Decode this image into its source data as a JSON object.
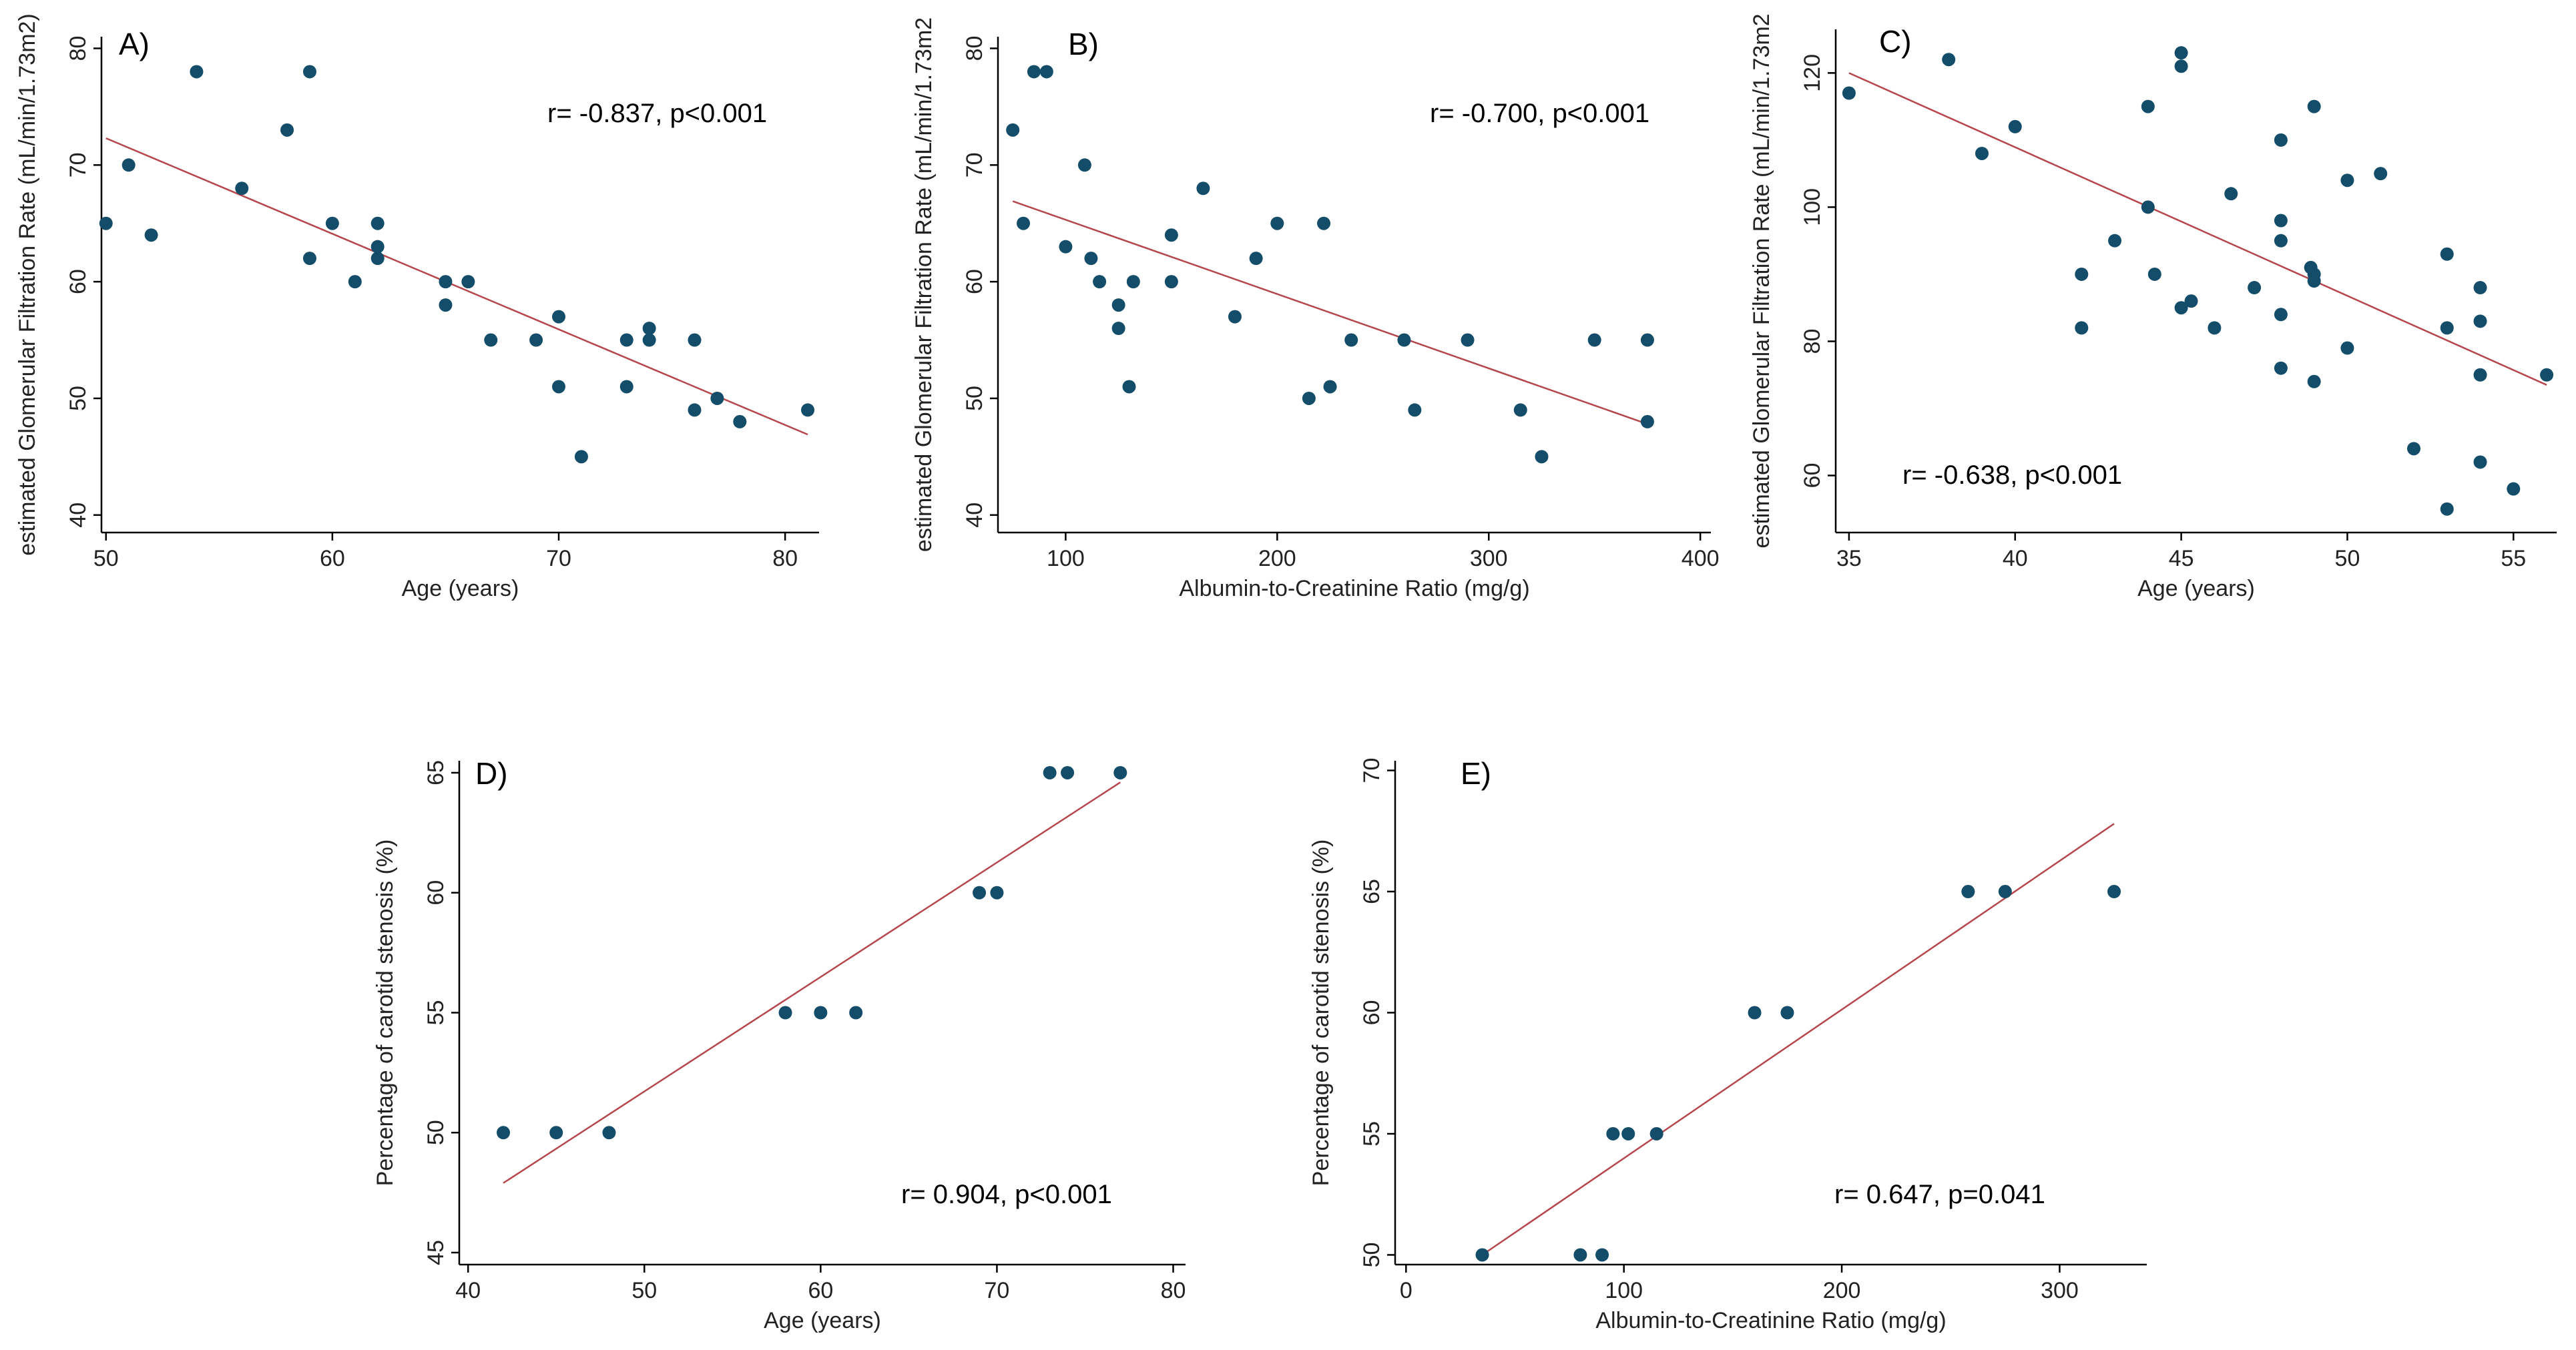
{
  "chart_data": [
    {
      "id": "A",
      "type": "scatter",
      "panel_label": "A)",
      "xlabel": "Age (years)",
      "ylabel": "estimated Glomerular Filtration Rate (mL/min/1.73m2)",
      "annotation": "r= -0.837, p<0.001",
      "xlim": [
        49.8,
        81.5
      ],
      "ylim": [
        38.5,
        81
      ],
      "xticks": [
        50,
        60,
        70,
        80
      ],
      "yticks": [
        40,
        50,
        60,
        70,
        80
      ],
      "fit": [
        [
          50,
          72.3
        ],
        [
          81,
          46.9
        ]
      ],
      "points": [
        [
          50,
          65
        ],
        [
          51,
          70
        ],
        [
          52,
          64
        ],
        [
          54,
          78
        ],
        [
          56,
          68
        ],
        [
          58,
          73
        ],
        [
          59,
          78
        ],
        [
          59,
          62
        ],
        [
          60,
          65
        ],
        [
          61,
          60
        ],
        [
          62,
          65
        ],
        [
          62,
          63
        ],
        [
          62,
          62
        ],
        [
          65,
          60
        ],
        [
          65,
          58
        ],
        [
          66,
          60
        ],
        [
          67,
          55
        ],
        [
          69,
          55
        ],
        [
          70,
          57
        ],
        [
          70,
          51
        ],
        [
          71,
          45
        ],
        [
          73,
          55
        ],
        [
          73,
          51
        ],
        [
          74,
          56
        ],
        [
          74,
          55
        ],
        [
          76,
          55
        ],
        [
          76,
          49
        ],
        [
          77,
          50
        ],
        [
          78,
          48
        ],
        [
          81,
          49
        ]
      ]
    },
    {
      "id": "B",
      "type": "scatter",
      "panel_label": "B)",
      "xlabel": "Albumin-to-Creatinine Ratio (mg/g)",
      "ylabel": "estimated Glomerular Filtration Rate (mL/min/1.73m2",
      "annotation": "r= -0.700, p<0.001",
      "xlim": [
        68,
        405
      ],
      "ylim": [
        38.5,
        81
      ],
      "xticks": [
        100,
        200,
        300,
        400
      ],
      "yticks": [
        40,
        50,
        60,
        70,
        80
      ],
      "fit": [
        [
          75,
          66.9
        ],
        [
          375,
          47.8
        ]
      ],
      "points": [
        [
          75,
          73
        ],
        [
          80,
          65
        ],
        [
          85,
          78
        ],
        [
          91,
          78
        ],
        [
          100,
          63
        ],
        [
          109,
          70
        ],
        [
          112,
          62
        ],
        [
          116,
          60
        ],
        [
          125,
          58
        ],
        [
          125,
          56
        ],
        [
          130,
          51
        ],
        [
          132,
          60
        ],
        [
          150,
          64
        ],
        [
          150,
          60
        ],
        [
          165,
          68
        ],
        [
          180,
          57
        ],
        [
          190,
          62
        ],
        [
          200,
          65
        ],
        [
          215,
          50
        ],
        [
          222,
          65
        ],
        [
          225,
          51
        ],
        [
          235,
          55
        ],
        [
          260,
          55
        ],
        [
          265,
          49
        ],
        [
          290,
          55
        ],
        [
          315,
          49
        ],
        [
          325,
          45
        ],
        [
          350,
          55
        ],
        [
          375,
          55
        ],
        [
          375,
          48
        ]
      ]
    },
    {
      "id": "C",
      "type": "scatter",
      "panel_label": "C)",
      "xlabel": "Age (years)",
      "ylabel": "estimated Glomerular Filtration Rate (mL/min/1.73m2",
      "annotation": "r= -0.638, p<0.001",
      "xlim": [
        34.6,
        56.3
      ],
      "ylim": [
        51.5,
        126.5
      ],
      "xticks": [
        35,
        40,
        45,
        50,
        55
      ],
      "yticks": [
        60,
        80,
        100,
        120
      ],
      "fit": [
        [
          35,
          120
        ],
        [
          56,
          73.5
        ]
      ],
      "points": [
        [
          35,
          117
        ],
        [
          38,
          122
        ],
        [
          39,
          108
        ],
        [
          40,
          112
        ],
        [
          42,
          90
        ],
        [
          42,
          82
        ],
        [
          43,
          95
        ],
        [
          44,
          115
        ],
        [
          44,
          100
        ],
        [
          44.2,
          90
        ],
        [
          45,
          123
        ],
        [
          45,
          121
        ],
        [
          45,
          85
        ],
        [
          45.3,
          86
        ],
        [
          46,
          82
        ],
        [
          46.5,
          102
        ],
        [
          47.2,
          88
        ],
        [
          48,
          110
        ],
        [
          48,
          98
        ],
        [
          48,
          95
        ],
        [
          48,
          84
        ],
        [
          48,
          76
        ],
        [
          48.9,
          91
        ],
        [
          49,
          115
        ],
        [
          49,
          90
        ],
        [
          49,
          89
        ],
        [
          49,
          74
        ],
        [
          50,
          104
        ],
        [
          50,
          79
        ],
        [
          51,
          105
        ],
        [
          52,
          64
        ],
        [
          53,
          93
        ],
        [
          53,
          82
        ],
        [
          53,
          55
        ],
        [
          54,
          88
        ],
        [
          54,
          83
        ],
        [
          54,
          75
        ],
        [
          54,
          62
        ],
        [
          55,
          58
        ],
        [
          56,
          75
        ]
      ]
    },
    {
      "id": "D",
      "type": "scatter",
      "panel_label": "D)",
      "xlabel": "Age (years)",
      "ylabel": "Percentage of carotid stenosis (%)",
      "annotation": "r= 0.904, p<0.001",
      "xlim": [
        39.5,
        80.7
      ],
      "ylim": [
        44.5,
        65.5
      ],
      "xticks": [
        40,
        50,
        60,
        70,
        80
      ],
      "yticks": [
        45,
        50,
        55,
        60,
        65
      ],
      "fit": [
        [
          42,
          47.9
        ],
        [
          77,
          64.6
        ]
      ],
      "points": [
        [
          42,
          50
        ],
        [
          45,
          50
        ],
        [
          48,
          50
        ],
        [
          58,
          55
        ],
        [
          60,
          55
        ],
        [
          62,
          55
        ],
        [
          69,
          60
        ],
        [
          70,
          60
        ],
        [
          73,
          65
        ],
        [
          74,
          65
        ],
        [
          77,
          65
        ]
      ]
    },
    {
      "id": "E",
      "type": "scatter",
      "panel_label": "E)",
      "xlabel": "Albumin-to-Creatinine Ratio (mg/g)",
      "ylabel": "Percentage of carotid stenosis (%)",
      "annotation": "r= 0.647, p=0.041",
      "xlim": [
        -5,
        340
      ],
      "ylim": [
        49.6,
        70.4
      ],
      "xticks": [
        0,
        100,
        200,
        300
      ],
      "yticks": [
        50,
        55,
        60,
        65,
        70
      ],
      "fit": [
        [
          35,
          50
        ],
        [
          325,
          67.8
        ]
      ],
      "points": [
        [
          35,
          50
        ],
        [
          80,
          50
        ],
        [
          90,
          50
        ],
        [
          95,
          55
        ],
        [
          102,
          55
        ],
        [
          115,
          55
        ],
        [
          160,
          60
        ],
        [
          175,
          60
        ],
        [
          258,
          65
        ],
        [
          275,
          65
        ],
        [
          325,
          65
        ]
      ]
    }
  ]
}
